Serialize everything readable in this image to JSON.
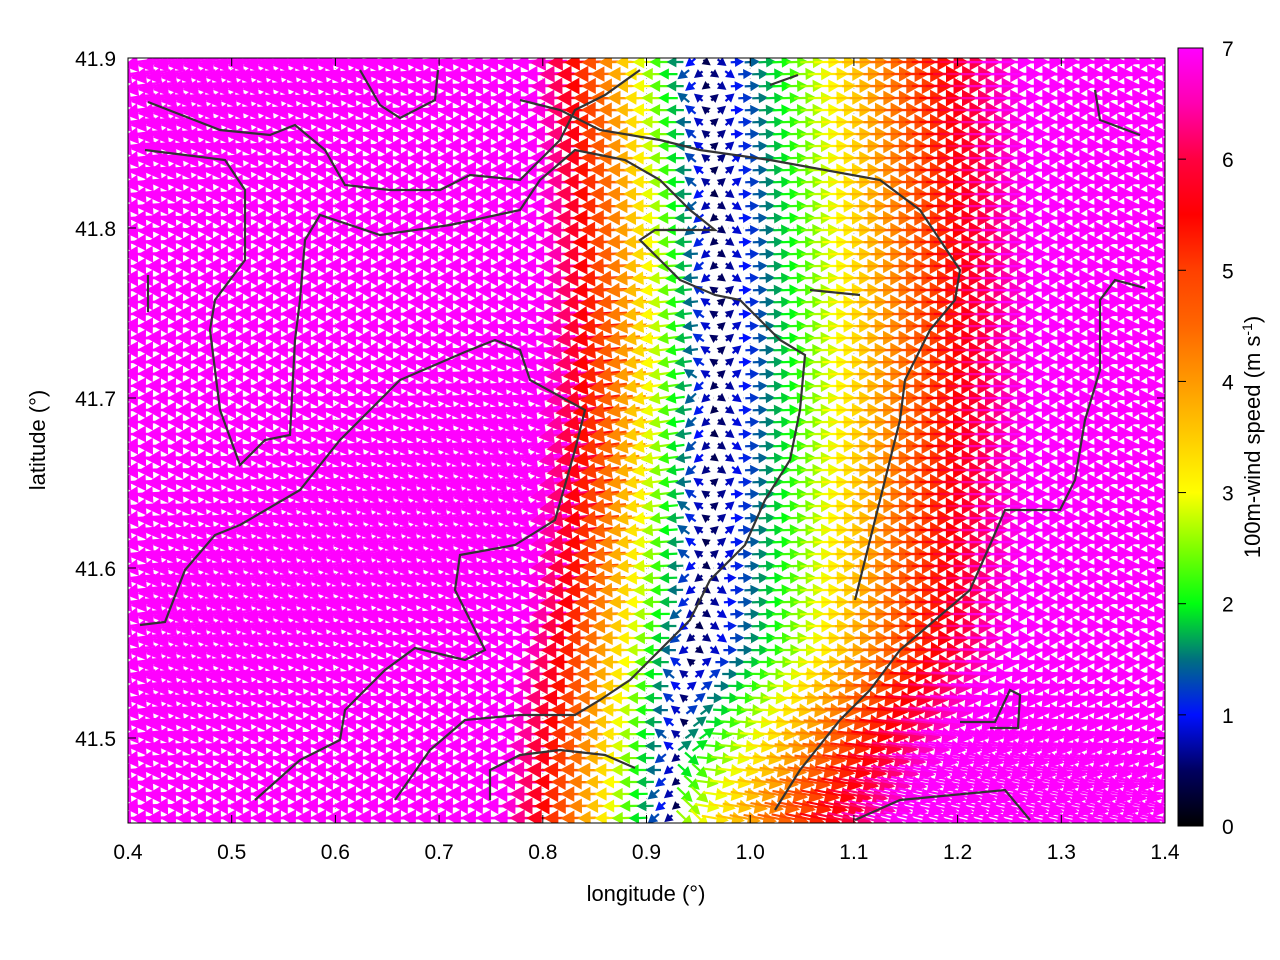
{
  "chart_data": {
    "type": "vector",
    "title": "",
    "xlabel": "longitude (°)",
    "ylabel": "latitude (°)",
    "xlim": [
      0.4,
      1.4
    ],
    "ylim": [
      41.45,
      41.9
    ],
    "xticks": [
      "0.4",
      "0.5",
      "0.6",
      "0.7",
      "0.8",
      "0.9",
      "1.0",
      "1.1",
      "1.2",
      "1.3",
      "1.4"
    ],
    "yticks": [
      "41.5",
      "41.6",
      "41.7",
      "41.8",
      "41.9"
    ],
    "grid": "dotted",
    "colorbar": {
      "label": "100m-wind speed (m s",
      "label_sup": "-1",
      "label_end": ")",
      "range": [
        0,
        7
      ],
      "ticks": [
        "0",
        "1",
        "2",
        "3",
        "4",
        "5",
        "6",
        "7"
      ],
      "colors": [
        "#000000",
        "#0010ff",
        "#00ff10",
        "#ffff00",
        "#ff9900",
        "#ff4000",
        "#ff0040",
        "#ff00ff"
      ]
    },
    "series": [
      {
        "description_none": true,
        "divergence_longitude": 0.95,
        "west_side_direction": "westward",
        "east_side_direction": "eastward",
        "max_speed": 7
      }
    ],
    "coastline_color": "#333333"
  }
}
